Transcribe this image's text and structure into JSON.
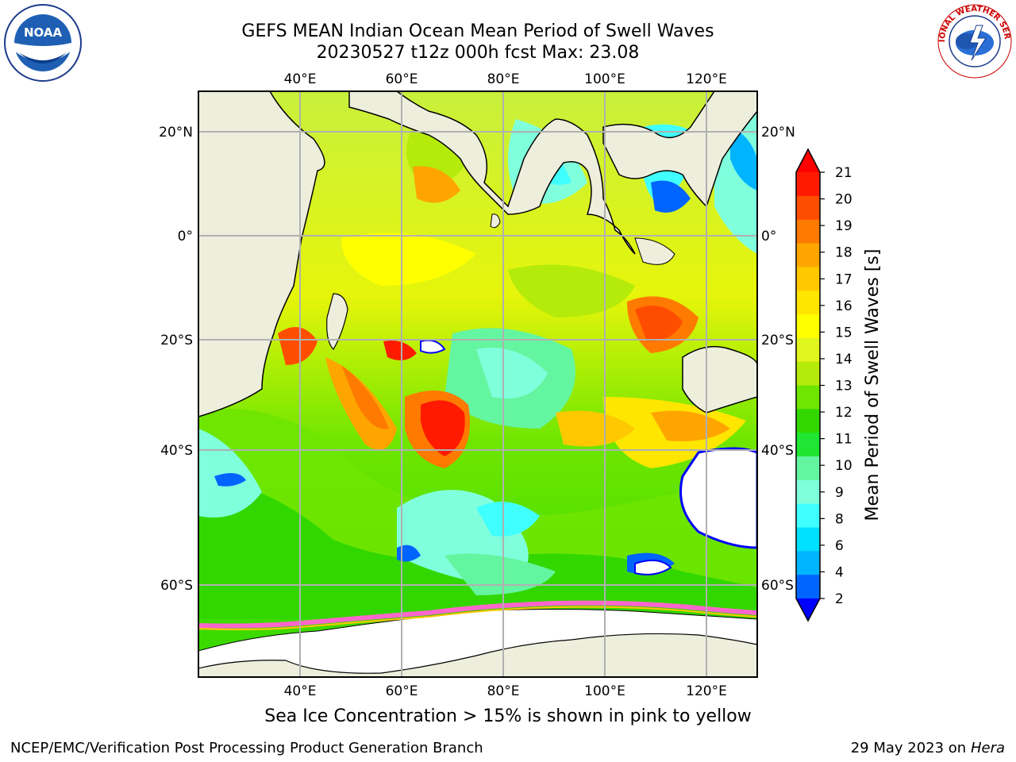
{
  "title_line1": "GEFS MEAN Indian Ocean Mean Period of Swell Waves",
  "title_line2": "20230527 t12z 000h fcst   Max: 23.08",
  "map": {
    "lon_ticks": [
      "40°E",
      "60°E",
      "80°E",
      "100°E",
      "120°E"
    ],
    "lat_ticks": [
      "20°N",
      "0°",
      "20°S",
      "40°S",
      "60°S"
    ],
    "lon_values": [
      40,
      60,
      80,
      100,
      120
    ],
    "lat_values": [
      20,
      0,
      -20,
      -40,
      -60
    ],
    "colors": {
      "land": "#eeeedd",
      "gridline": "#b0b0b0",
      "ice": "#ff66cc"
    }
  },
  "colorbar": {
    "label": "Mean Period of Swell Waves [s]",
    "ticks": [
      "21",
      "20",
      "19",
      "18",
      "17",
      "16",
      "15",
      "14",
      "13",
      "12",
      "11",
      "10",
      "9",
      "8",
      "6",
      "4",
      "2"
    ],
    "colors": [
      "#ff1a00",
      "#ff4d00",
      "#ff7a00",
      "#ffa500",
      "#ffc800",
      "#ffe600",
      "#ffff00",
      "#e1f51e",
      "#b4eb0a",
      "#6ee600",
      "#32d700",
      "#1ee632",
      "#64f5a0",
      "#80ffdc",
      "#40ffff",
      "#00e0ff",
      "#00b4ff",
      "#0064ff"
    ],
    "min_extend_color": "#0000ff",
    "max_extend_color": "#ff0000"
  },
  "ice_note": "Sea Ice Concentration > 15% is shown in pink to yellow",
  "footer": {
    "left": "NCEP/EMC/Verification Post Processing Product Generation Branch",
    "right_date": "29 May 2023 on",
    "right_machine": "Hera"
  },
  "logos": {
    "noaa_text": "NOAA",
    "nws_text": "NATIONAL WEATHER SERVICE"
  }
}
